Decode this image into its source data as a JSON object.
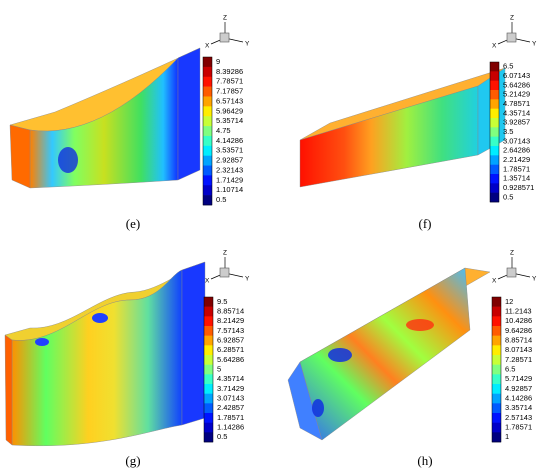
{
  "panels": [
    {
      "label": "(e)",
      "axes": [
        "Z",
        "Y",
        "X"
      ],
      "colorbar": [
        9,
        8.39286,
        7.78571,
        7.17857,
        6.57143,
        5.96429,
        5.35714,
        4.75,
        4.14286,
        3.53571,
        2.92857,
        2.32143,
        1.71429,
        1.10714,
        0.5
      ]
    },
    {
      "label": "(f)",
      "axes": [
        "Z",
        "Y",
        "X"
      ],
      "colorbar": [
        6.5,
        6.07143,
        5.64286,
        5.21429,
        4.78571,
        4.35714,
        3.92857,
        3.5,
        3.07143,
        2.64286,
        2.21429,
        1.78571,
        1.35714,
        0.928571,
        0.5
      ]
    },
    {
      "label": "(g)",
      "axes": [
        "Z",
        "Y",
        "X"
      ],
      "colorbar": [
        9.5,
        8.85714,
        8.21429,
        7.57143,
        6.92857,
        6.28571,
        5.64286,
        5,
        4.35714,
        3.71429,
        3.07143,
        2.42857,
        1.78571,
        1.14286,
        0.5
      ]
    },
    {
      "label": "(h)",
      "axes": [
        "Z",
        "Y",
        "X"
      ],
      "colorbar": [
        12,
        11.2143,
        10.4286,
        9.64286,
        8.85714,
        8.07143,
        7.28571,
        6.5,
        5.71429,
        4.92857,
        4.14286,
        3.35714,
        2.57143,
        1.78571,
        1
      ]
    }
  ]
}
